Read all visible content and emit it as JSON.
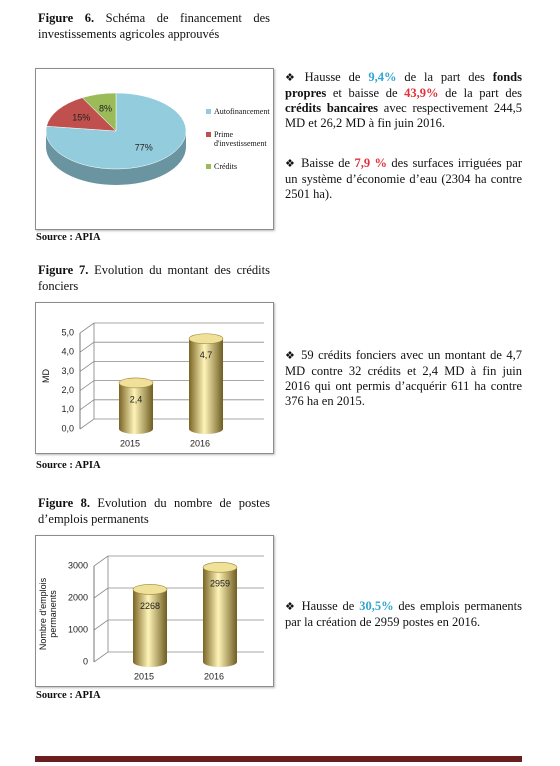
{
  "chart_data": [
    {
      "type": "pie",
      "figure": "Figure 6.",
      "title": "Schéma de financement des investissements agricoles approuvés",
      "categories": [
        "Autofinancement",
        "Prime d'investissement",
        "Crédits"
      ],
      "values": [
        77,
        15,
        8
      ],
      "value_labels": [
        "77%",
        "15%",
        "8%"
      ],
      "colors": [
        "#93cddd",
        "#c0504d",
        "#9bbb59"
      ],
      "legend": "right",
      "source": "Source : APIA"
    },
    {
      "type": "bar",
      "figure": "Figure 7.",
      "title": "Evolution du montant des crédits fonciers",
      "categories": [
        "2015",
        "2016"
      ],
      "values": [
        2.4,
        4.7
      ],
      "value_labels": [
        "2,4",
        "4,7"
      ],
      "ylabel": "MD",
      "ylim": [
        0,
        5
      ],
      "yticks": [
        {
          "value": 0,
          "label": "0,0"
        },
        {
          "value": 1,
          "label": "1,0"
        },
        {
          "value": 2,
          "label": "2,0"
        },
        {
          "value": 3,
          "label": "3,0"
        },
        {
          "value": 4,
          "label": "4,0"
        },
        {
          "value": 5,
          "label": "5,0"
        }
      ],
      "grid": true,
      "color": "#c9a93e",
      "source": "Source : APIA"
    },
    {
      "type": "bar",
      "figure": "Figure 8.",
      "title": "Evolution du nombre de postes d’emplois permanents",
      "categories": [
        "2015",
        "2016"
      ],
      "values": [
        2268,
        2959
      ],
      "ylabel": "Nombre d'emplois permanents",
      "ylim": [
        0,
        3000
      ],
      "yticks": [
        0,
        1000,
        2000,
        3000
      ],
      "grid": true,
      "color": "#c9a93e",
      "source": "Source : APIA"
    }
  ],
  "bullets": [
    [
      "Hausse de ",
      "9,4%",
      " de la part des ",
      "fonds propres",
      " et baisse de ",
      "43,9%",
      " de la part des ",
      "crédits bancaires",
      " avec respectivement 244,5 MD et 26,2 MD à fin juin 2016."
    ],
    [
      "Baisse de ",
      "7,9 %",
      " des surfaces irriguées par un système d’économie d’eau (2304 ha contre 2501 ha)."
    ],
    [
      "59 crédits fonciers avec un montant de 4,7 MD contre 32 crédits et 2,4 MD à fin juin 2016 qui ont permis d’acquérir 611 ha contre 376 ha en 2015."
    ],
    [
      "Hausse de ",
      "30,5%",
      " des emplois permanents par la création de 2959 postes en 2016."
    ]
  ]
}
